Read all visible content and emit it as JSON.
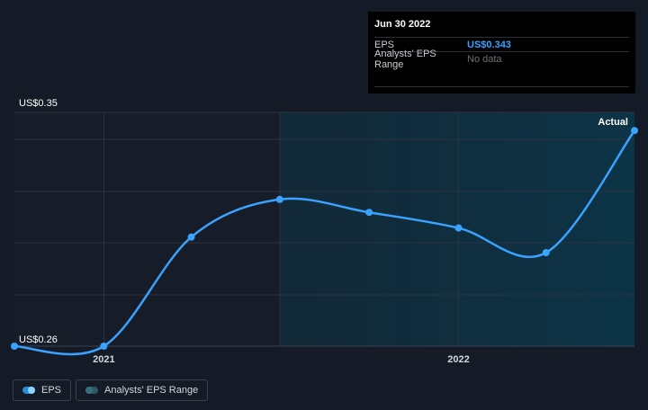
{
  "tooltip": {
    "date": "Jun 30 2022",
    "eps_label": "EPS",
    "eps_value": "US$0.343",
    "range_label": "Analysts' EPS Range",
    "range_value": "No data"
  },
  "chart_data": {
    "type": "line",
    "y_top_label": "US$0.35",
    "y_bottom_label": "US$0.26",
    "ylim": [
      0.26,
      0.35
    ],
    "xlim": [
      "2020-09-30",
      "2022-06-30"
    ],
    "x_ticks": [
      {
        "label": "2021",
        "date": "2020-12-31"
      },
      {
        "label": "2022",
        "date": "2021-12-31"
      }
    ],
    "annotation": "Actual",
    "forecast_region_start": "2021-06-30",
    "grid": true,
    "series": [
      {
        "name": "EPS",
        "color": "#3aa2ff",
        "points": [
          {
            "x": "2020-09-30",
            "y": 0.26
          },
          {
            "x": "2020-12-31",
            "y": 0.26
          },
          {
            "x": "2021-03-31",
            "y": 0.302
          },
          {
            "x": "2021-06-30",
            "y": 0.3165
          },
          {
            "x": "2021-09-30",
            "y": 0.3115
          },
          {
            "x": "2021-12-31",
            "y": 0.3055
          },
          {
            "x": "2022-03-31",
            "y": 0.296
          },
          {
            "x": "2022-06-30",
            "y": 0.343
          }
        ]
      }
    ]
  },
  "legend": {
    "eps_label": "EPS",
    "range_label": "Analysts' EPS Range"
  }
}
